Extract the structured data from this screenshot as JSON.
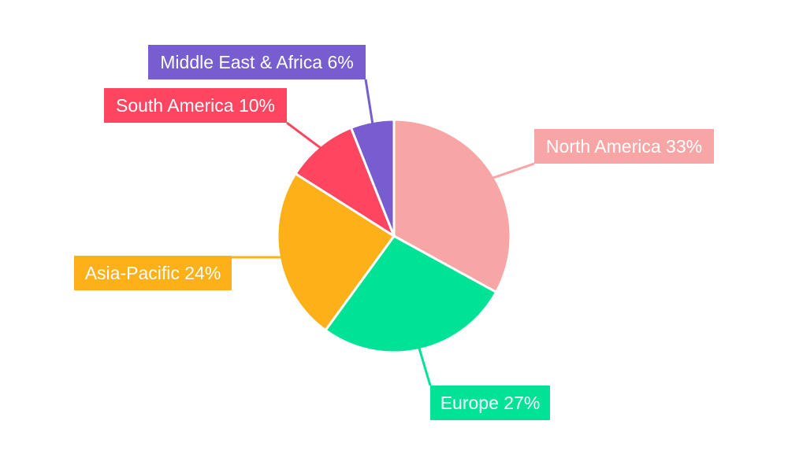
{
  "chart_data": {
    "type": "pie",
    "title": "",
    "legend": "none",
    "categories": [
      "North America",
      "Europe",
      "Asia-Pacific",
      "South America",
      "Middle East & Africa"
    ],
    "values": [
      33,
      27,
      24,
      10,
      6
    ],
    "unit": "%",
    "slice_labels": [
      "North America 33%",
      "Europe 27%",
      "Asia-Pacific 24%",
      "South America 10%",
      "Middle East & Africa 6%"
    ],
    "colors": [
      "#f8a5a5",
      "#00e396",
      "#feb019",
      "#ff4560",
      "#775dd0"
    ],
    "label_text_color": "#ffffff",
    "slice_border_color": "#ffffff"
  }
}
